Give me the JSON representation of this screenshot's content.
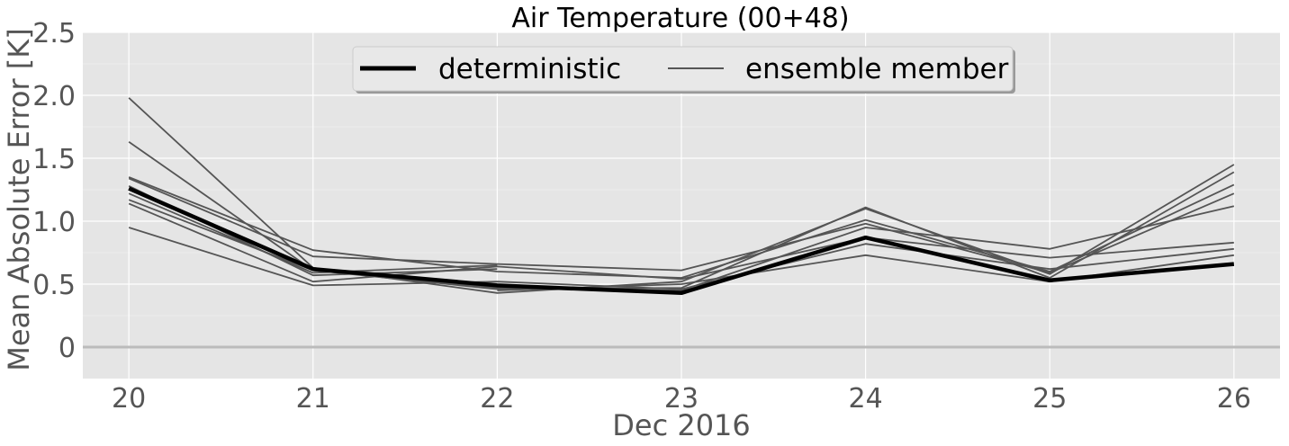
{
  "chart_data": {
    "type": "line",
    "title": "Air Temperature (00+48)",
    "xlabel": "Dec 2016",
    "ylabel": "Mean Absolute Error [K]",
    "x": [
      "20",
      "21",
      "22",
      "23",
      "24",
      "25",
      "26"
    ],
    "xlim": [
      19.75,
      26.25
    ],
    "ylim": [
      -0.25,
      2.5
    ],
    "yticks": [
      {
        "value": 0,
        "label": "0"
      },
      {
        "value": 0.5,
        "label": "0.5"
      },
      {
        "value": 1.0,
        "label": "1.0"
      },
      {
        "value": 1.5,
        "label": "1.5"
      },
      {
        "value": 2.0,
        "label": "2.0"
      },
      {
        "value": 2.5,
        "label": "2.5"
      }
    ],
    "grid": true,
    "legend": {
      "position": "top-center",
      "entries": [
        {
          "label": "deterministic",
          "style": "thick"
        },
        {
          "label": "ensemble member",
          "style": "thin"
        }
      ]
    },
    "colors": {
      "background": "#e5e5e5",
      "grid": "#ffffff",
      "deterministic": "#000000",
      "ensemble": "#555555",
      "zero_line": "#bbbbbb"
    },
    "series": [
      {
        "name": "deterministic",
        "x": [
          20,
          21,
          22,
          23,
          24,
          25,
          26
        ],
        "values": [
          1.26,
          0.62,
          0.49,
          0.43,
          0.87,
          0.53,
          0.66
        ]
      },
      {
        "x": [
          20,
          21,
          22,
          23,
          24,
          25,
          26
        ],
        "values": [
          1.98,
          0.63,
          0.43,
          0.52,
          1.1,
          0.58,
          1.45
        ]
      },
      {
        "x": [
          20,
          21,
          22,
          23,
          24,
          25,
          26
        ],
        "values": [
          1.63,
          0.61,
          0.46,
          0.47,
          1.11,
          0.55,
          1.39
        ]
      },
      {
        "x": [
          20,
          21,
          22,
          23,
          24,
          25,
          26
        ],
        "values": [
          1.35,
          0.77,
          0.6,
          0.55,
          1.01,
          0.6,
          1.29
        ]
      },
      {
        "x": [
          20,
          21,
          22,
          23,
          24,
          25,
          26
        ],
        "values": [
          1.34,
          0.72,
          0.66,
          0.61,
          0.98,
          0.59,
          1.22
        ]
      },
      {
        "x": [
          20,
          21,
          22,
          23,
          24,
          25,
          26
        ],
        "values": [
          1.17,
          0.61,
          0.47,
          0.45,
          0.95,
          0.78,
          1.12
        ]
      },
      {
        "x": [
          20,
          21,
          22,
          23,
          24,
          25,
          26
        ],
        "values": [
          1.14,
          0.52,
          0.64,
          0.54,
          0.87,
          0.71,
          0.83
        ]
      },
      {
        "x": [
          20,
          21,
          22,
          23,
          24,
          25,
          26
        ],
        "values": [
          0.95,
          0.49,
          0.52,
          0.46,
          0.82,
          0.62,
          0.78
        ]
      },
      {
        "x": [
          20,
          21,
          22
        ],
        "values": [
          1.28,
          0.57,
          0.62
        ]
      },
      {
        "x": [
          20,
          21,
          22
        ],
        "values": [
          1.22,
          0.59,
          0.65
        ]
      },
      {
        "x": [
          22,
          23,
          24,
          25,
          26
        ],
        "values": [
          0.45,
          0.5,
          0.73,
          0.52,
          0.73
        ]
      }
    ]
  }
}
